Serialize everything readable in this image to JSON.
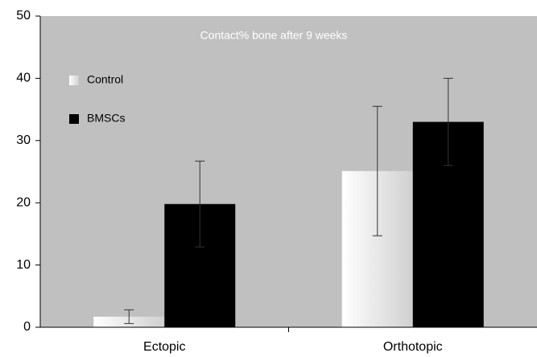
{
  "chart_data": {
    "type": "bar",
    "title": "Contact% bone after 9 weeks",
    "categories": [
      "Ectopic",
      "Orthotopic"
    ],
    "series": [
      {
        "name": "Control",
        "color": "#d0d0d0",
        "values": [
          1.7,
          25.1
        ],
        "errors": [
          1.1,
          10.4
        ]
      },
      {
        "name": "BMSCs",
        "color": "#000000",
        "values": [
          19.8,
          33
        ],
        "errors": [
          6.9,
          7
        ]
      }
    ],
    "ylim": [
      0,
      50
    ],
    "yticks": [
      0,
      10,
      20,
      30,
      40,
      50
    ],
    "background": "#c0c0c0",
    "legend": "upper left"
  }
}
